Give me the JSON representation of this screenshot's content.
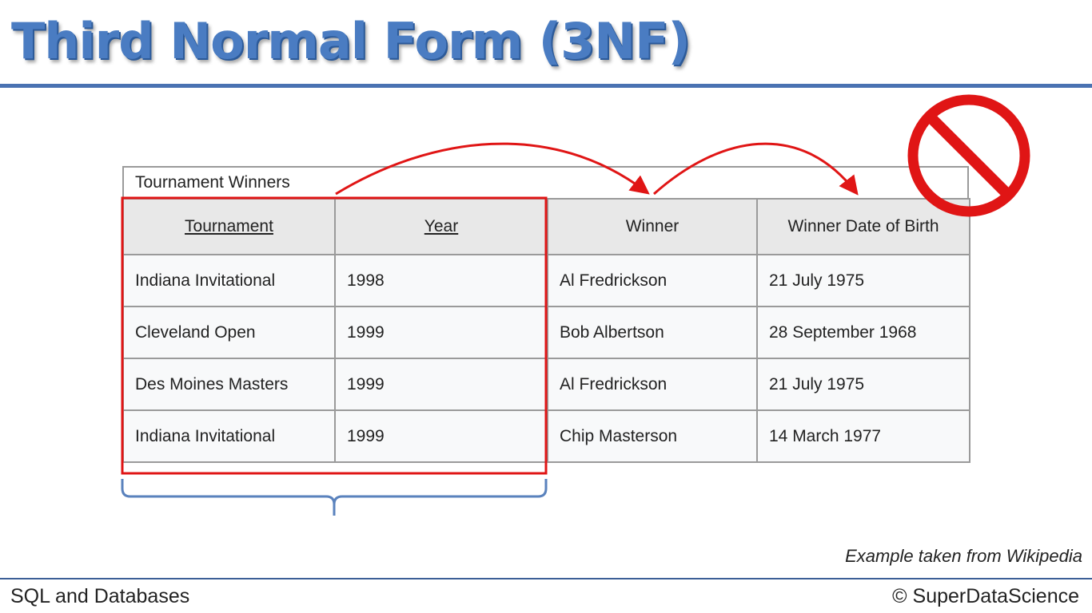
{
  "slide": {
    "title": "Third Normal Form (3NF)",
    "source_note": "Example taken from Wikipedia"
  },
  "footer": {
    "left": "SQL and Databases",
    "right": "© SuperDataScience"
  },
  "table": {
    "caption": "Tournament Winners",
    "headers": [
      "Tournament",
      "Year",
      "Winner",
      "Winner Date of Birth"
    ],
    "key_columns": [
      "Tournament",
      "Year"
    ],
    "rows": [
      [
        "Indiana Invitational",
        "1998",
        "Al Fredrickson",
        "21 July 1975"
      ],
      [
        "Cleveland Open",
        "1999",
        "Bob Albertson",
        "28 September 1968"
      ],
      [
        "Des Moines Masters",
        "1999",
        "Al Fredrickson",
        "21 July 1975"
      ],
      [
        "Indiana Invitational",
        "1999",
        "Chip Masterson",
        "14 March 1977"
      ]
    ]
  },
  "colors": {
    "title_blue": "#4a7cc2",
    "rule_blue": "#4a72b2",
    "highlight_red": "#e01515",
    "brace_blue": "#5a82bd"
  },
  "icons": {
    "prohibition": "no-entry-sign-icon"
  }
}
